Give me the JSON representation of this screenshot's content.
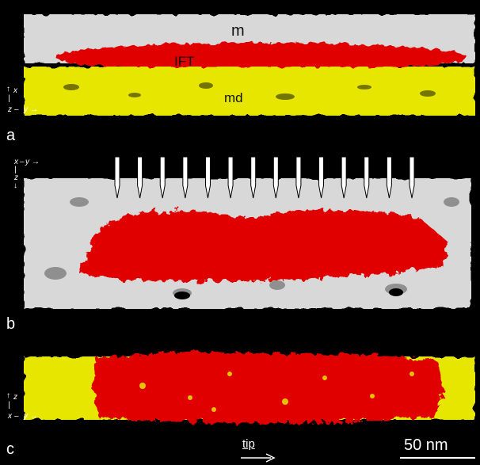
{
  "panels": {
    "a": {
      "panel_label": "a",
      "labels": {
        "membrane": "m",
        "ift": "IFT",
        "microtubule_doublet": "md"
      },
      "axes": {
        "up": "x",
        "mid": "z",
        "right": "y"
      }
    },
    "b": {
      "panel_label": "b",
      "axes": {
        "left": "x",
        "right": "y",
        "down": "z"
      },
      "arrow_count": 14
    },
    "c": {
      "panel_label": "c",
      "axes": {
        "up": "z",
        "left": "x",
        "right": "y"
      }
    }
  },
  "direction_label": "tip",
  "scale_bar": {
    "label": "50 nm"
  },
  "colors": {
    "membrane": "#d8d8d8",
    "ift": "#e00000",
    "microtubule_doublet": "#e6e600",
    "background": "#000000"
  }
}
